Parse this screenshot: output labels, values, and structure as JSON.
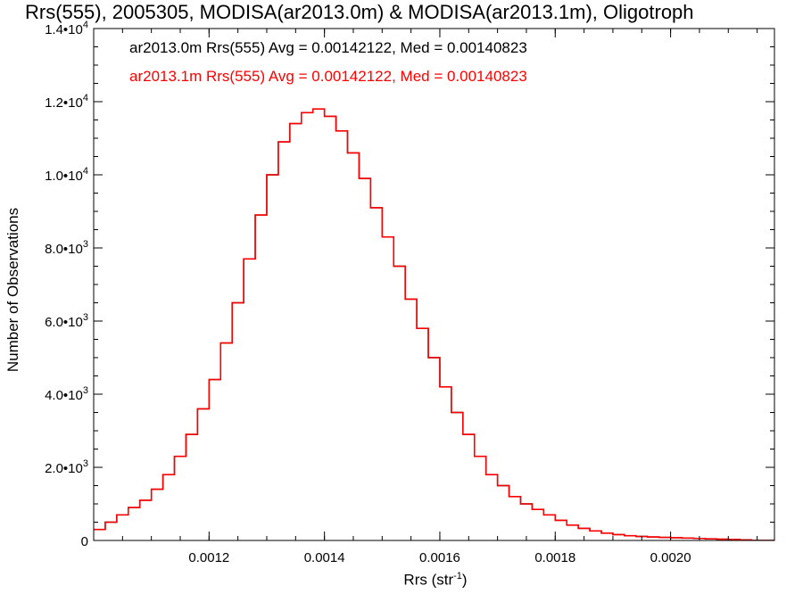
{
  "chart_data": {
    "type": "line",
    "title": "Rrs(555), 2005305, MODISA(ar2013.0m) & MODISA(ar2013.1m), Oligotroph",
    "xlabel": "Rrs (str",
    "xlabel_sup": "-1",
    "xlabel_suffix": ")",
    "ylabel": "Number of Observations",
    "xlim": [
      0.001,
      0.00218
    ],
    "ylim": [
      0,
      14000
    ],
    "grid": false,
    "xticks": [
      {
        "value": 0.0012,
        "label": "0.0012"
      },
      {
        "value": 0.0014,
        "label": "0.0014"
      },
      {
        "value": 0.0016,
        "label": "0.0016"
      },
      {
        "value": 0.0018,
        "label": "0.0018"
      },
      {
        "value": 0.002,
        "label": "0.0020"
      }
    ],
    "yticks": [
      {
        "value": 0,
        "base": "0",
        "exp": ""
      },
      {
        "value": 2000,
        "base": "2.0•10",
        "exp": "3"
      },
      {
        "value": 4000,
        "base": "4.0•10",
        "exp": "3"
      },
      {
        "value": 6000,
        "base": "6.0•10",
        "exp": "3"
      },
      {
        "value": 8000,
        "base": "8.0•10",
        "exp": "3"
      },
      {
        "value": 10000,
        "base": "1.0•10",
        "exp": "4"
      },
      {
        "value": 12000,
        "base": "1.2•10",
        "exp": "4"
      },
      {
        "value": 14000,
        "base": "1.4•10",
        "exp": "4"
      }
    ],
    "series": [
      {
        "name": "ar2013.0m",
        "color": "#000000",
        "legend": "ar2013.0m Rrs(555) Avg = 0.00142122, Med = 0.00140823",
        "x": [
          0.001,
          0.00102,
          0.00104,
          0.00106,
          0.00108,
          0.0011,
          0.00112,
          0.00114,
          0.00116,
          0.00118,
          0.0012,
          0.00122,
          0.00124,
          0.00126,
          0.00128,
          0.0013,
          0.00132,
          0.00134,
          0.00136,
          0.00138,
          0.0014,
          0.00142,
          0.00144,
          0.00146,
          0.00148,
          0.0015,
          0.00152,
          0.00154,
          0.00156,
          0.00158,
          0.0016,
          0.00162,
          0.00164,
          0.00166,
          0.00168,
          0.0017,
          0.00172,
          0.00174,
          0.00176,
          0.00178,
          0.0018,
          0.00182,
          0.00184,
          0.00186,
          0.00188,
          0.0019,
          0.00192,
          0.00194,
          0.00196,
          0.00198,
          0.002,
          0.00202,
          0.00204,
          0.00206,
          0.00208,
          0.0021,
          0.00212,
          0.00214,
          0.00216,
          0.00218
        ],
        "y": [
          300,
          500,
          700,
          900,
          1100,
          1400,
          1800,
          2300,
          2900,
          3600,
          4400,
          5400,
          6500,
          7700,
          8900,
          10000,
          10900,
          11400,
          11700,
          11800,
          11600,
          11200,
          10600,
          9900,
          9100,
          8300,
          7500,
          6600,
          5800,
          5000,
          4200,
          3500,
          2900,
          2300,
          1800,
          1500,
          1200,
          1000,
          850,
          700,
          550,
          420,
          330,
          260,
          200,
          160,
          130,
          110,
          95,
          85,
          75,
          65,
          55,
          45,
          35,
          25,
          15,
          0,
          -60,
          -80
        ]
      },
      {
        "name": "ar2013.1m",
        "color": "#ff0000",
        "legend": "ar2013.1m Rrs(555) Avg = 0.00142122, Med = 0.00140823",
        "x": [
          0.001,
          0.00102,
          0.00104,
          0.00106,
          0.00108,
          0.0011,
          0.00112,
          0.00114,
          0.00116,
          0.00118,
          0.0012,
          0.00122,
          0.00124,
          0.00126,
          0.00128,
          0.0013,
          0.00132,
          0.00134,
          0.00136,
          0.00138,
          0.0014,
          0.00142,
          0.00144,
          0.00146,
          0.00148,
          0.0015,
          0.00152,
          0.00154,
          0.00156,
          0.00158,
          0.0016,
          0.00162,
          0.00164,
          0.00166,
          0.00168,
          0.0017,
          0.00172,
          0.00174,
          0.00176,
          0.00178,
          0.0018,
          0.00182,
          0.00184,
          0.00186,
          0.00188,
          0.0019,
          0.00192,
          0.00194,
          0.00196,
          0.00198,
          0.002,
          0.00202,
          0.00204,
          0.00206,
          0.00208,
          0.0021,
          0.00212,
          0.00214,
          0.00216,
          0.00218
        ],
        "y": [
          300,
          500,
          700,
          900,
          1100,
          1400,
          1800,
          2300,
          2900,
          3600,
          4400,
          5400,
          6500,
          7700,
          8900,
          10000,
          10900,
          11400,
          11700,
          11800,
          11600,
          11200,
          10600,
          9900,
          9100,
          8300,
          7500,
          6600,
          5800,
          5000,
          4200,
          3500,
          2900,
          2300,
          1800,
          1500,
          1200,
          1000,
          850,
          700,
          550,
          420,
          330,
          260,
          200,
          160,
          130,
          110,
          95,
          85,
          75,
          65,
          55,
          45,
          35,
          25,
          15,
          0,
          -60,
          -80
        ]
      }
    ]
  }
}
